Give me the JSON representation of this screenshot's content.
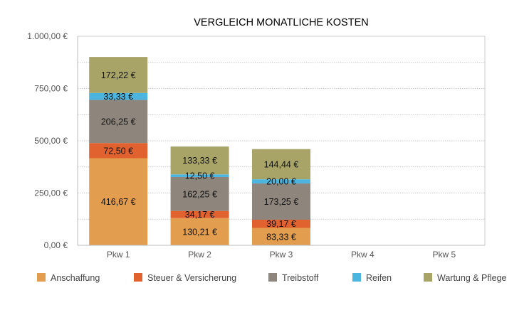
{
  "chart_data": {
    "type": "bar",
    "stacked": true,
    "title": "VERGLEICH MONATLICHE KOSTEN",
    "xlabel": "",
    "ylabel": "",
    "ylim": [
      0,
      1000
    ],
    "yticks": [
      0,
      250,
      500,
      750,
      1000
    ],
    "ytick_labels": [
      "0,00 €",
      "250,00 €",
      "500,00 €",
      "750,00 €",
      "1.000,00 €"
    ],
    "grid": true,
    "legend_position": "bottom",
    "categories": [
      "Pkw 1",
      "Pkw 2",
      "Pkw 3",
      "Pkw 4",
      "Pkw 5"
    ],
    "series": [
      {
        "name": "Anschaffung",
        "color": "#E29E4E",
        "values": [
          416.67,
          130.21,
          83.33,
          null,
          null
        ],
        "labels": [
          "416,67 €",
          "130,21 €",
          "83,33 €",
          "",
          ""
        ]
      },
      {
        "name": "Steuer & Versicherung",
        "color": "#E2622F",
        "values": [
          72.5,
          34.17,
          39.17,
          null,
          null
        ],
        "labels": [
          "72,50 €",
          "34,17 €",
          "39,17 €",
          "",
          ""
        ]
      },
      {
        "name": "Treibstoff",
        "color": "#8E857D",
        "values": [
          206.25,
          162.25,
          173.25,
          null,
          null
        ],
        "labels": [
          "206,25 €",
          "162,25 €",
          "173,25 €",
          "",
          ""
        ]
      },
      {
        "name": "Reifen",
        "color": "#4BB5DF",
        "values": [
          33.33,
          12.5,
          20.0,
          null,
          null
        ],
        "labels": [
          "33,33 €",
          "12,50 €",
          "20,00 €",
          "",
          ""
        ]
      },
      {
        "name": "Wartung & Pflege",
        "color": "#A8A468",
        "values": [
          172.22,
          133.33,
          144.44,
          null,
          null
        ],
        "labels": [
          "172,22 €",
          "133,33 €",
          "144,44 €",
          "",
          ""
        ]
      }
    ]
  }
}
